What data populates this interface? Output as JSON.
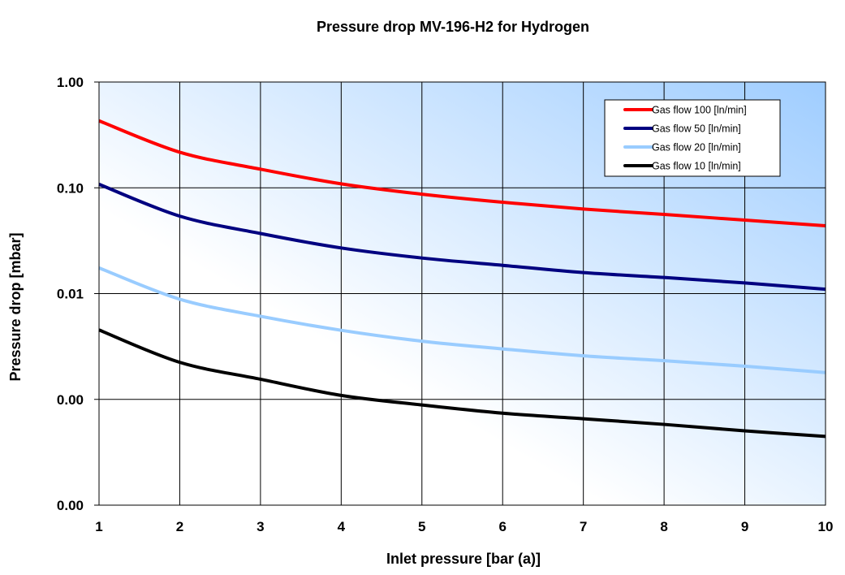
{
  "chart_data": {
    "type": "line",
    "title": "Pressure drop MV-196-H2 for Hydrogen",
    "xlabel": "Inlet pressure [bar (a)]",
    "ylabel": "Pressure drop [mbar]",
    "x": [
      1,
      2,
      3,
      4,
      5,
      6,
      7,
      8,
      9,
      10
    ],
    "xlim": [
      1,
      10
    ],
    "x_ticks": [
      "1",
      "2",
      "3",
      "4",
      "5",
      "6",
      "7",
      "8",
      "9",
      "10"
    ],
    "y_scale": "log",
    "ylim": [
      0.0001,
      1
    ],
    "y_ticks": [
      {
        "value": 1,
        "label": "1.00"
      },
      {
        "value": 0.1,
        "label": "0.10"
      },
      {
        "value": 0.01,
        "label": "0.01"
      },
      {
        "value": 0.001,
        "label": "0.00"
      },
      {
        "value": 0.0001,
        "label": "0.00"
      }
    ],
    "grid": true,
    "legend_position": "top-right",
    "background": {
      "gradient_from": "#ffffff",
      "gradient_to": "#9fcdff"
    },
    "series": [
      {
        "name": "Gas flow 100  [ln/min]",
        "color": "#ff0000",
        "values": [
          0.43,
          0.217,
          0.15,
          0.109,
          0.087,
          0.073,
          0.063,
          0.056,
          0.0495,
          0.0438
        ]
      },
      {
        "name": "Gas flow 50  [ln/min]",
        "color": "#000080",
        "values": [
          0.108,
          0.054,
          0.037,
          0.027,
          0.0217,
          0.0185,
          0.0158,
          0.0142,
          0.0126,
          0.011
        ]
      },
      {
        "name": "Gas flow 20  [ln/min]",
        "color": "#99ccff",
        "values": [
          0.0175,
          0.00885,
          0.0061,
          0.0045,
          0.00355,
          0.003,
          0.00258,
          0.00232,
          0.00206,
          0.00179
        ]
      },
      {
        "name": "Gas flow 10  [ln/min]",
        "color": "#000000",
        "values": [
          0.00453,
          0.00224,
          0.00155,
          0.00109,
          0.000885,
          0.00074,
          0.000656,
          0.00058,
          0.000504,
          0.000446
        ]
      }
    ]
  }
}
